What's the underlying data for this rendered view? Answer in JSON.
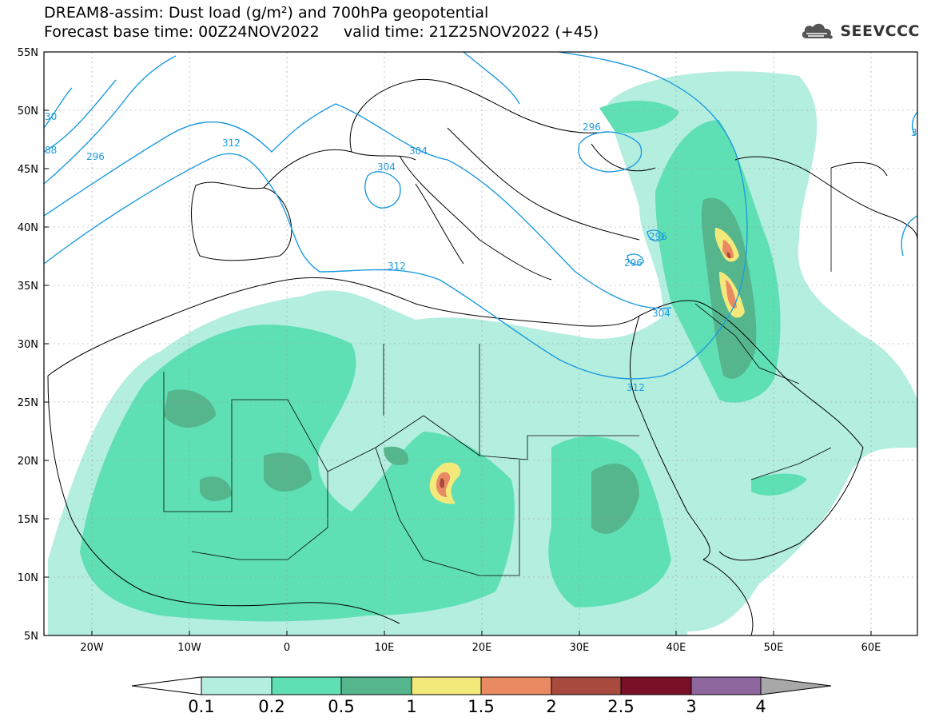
{
  "header": {
    "title_line1": "DREAM8-assim: Dust load (g/m²) and 700hPa geopotential",
    "title_line2": "Forecast base time: 00Z24NOV2022     valid time: 21Z25NOV2022 (+45)",
    "logo_text": "SEEVCCC"
  },
  "axes": {
    "lat_labels": [
      "55N",
      "50N",
      "45N",
      "40N",
      "35N",
      "30N",
      "25N",
      "20N",
      "15N",
      "10N",
      "5N"
    ],
    "lon_labels": [
      "20W",
      "10W",
      "0",
      "10E",
      "20E",
      "30E",
      "40E",
      "50E",
      "60E"
    ]
  },
  "contour_labels": [
    "296",
    "312",
    "304",
    "304",
    "312",
    "296",
    "296",
    "296",
    "304",
    "312",
    "30",
    "88",
    "3"
  ],
  "colorbar": {
    "labels": [
      "0.1",
      "0.2",
      "0.5",
      "1",
      "1.5",
      "2",
      "2.5",
      "3",
      "4"
    ],
    "colors": [
      "#b4eedf",
      "#5fe0b4",
      "#55b68e",
      "#f3e97b",
      "#e98a62",
      "#a84a3d",
      "#7a1028",
      "#8f679f"
    ],
    "lower_end_color": "#ffffff",
    "upper_end_color": "#a8a8a8"
  },
  "map": {
    "contour_color": "#1e9be0",
    "dust_colors": {
      "c01": "#b4eedf",
      "c02": "#5fe0b4",
      "c05": "#55b68e",
      "c1": "#f3e97b",
      "c15": "#e98a62",
      "c2": "#a84a3d"
    }
  }
}
